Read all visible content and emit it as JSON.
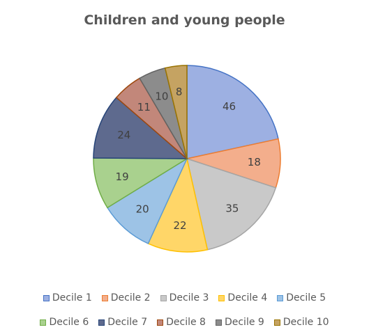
{
  "chart_data": {
    "type": "pie",
    "title": "Children and young people",
    "categories": [
      "Decile 1",
      "Decile 2",
      "Decile 3",
      "Decile 4",
      "Decile 5",
      "Decile 6",
      "Decile 7",
      "Decile 8",
      "Decile 9",
      "Decile 10"
    ],
    "values": [
      46,
      18,
      35,
      22,
      20,
      19,
      24,
      11,
      10,
      8
    ],
    "colors": [
      "#9DB0E2",
      "#F3AE8C",
      "#C9C9C9",
      "#FFD668",
      "#9DC3E6",
      "#A9D18E",
      "#5E6A8E",
      "#C2877A",
      "#8C8C8C",
      "#C5A362"
    ],
    "borders": [
      "#4472C4",
      "#ED7D31",
      "#A5A5A5",
      "#FFC000",
      "#5B9BD5",
      "#70AD47",
      "#264478",
      "#9E480E",
      "#636363",
      "#997300"
    ],
    "legend_position": "bottom",
    "data_labels": true
  }
}
